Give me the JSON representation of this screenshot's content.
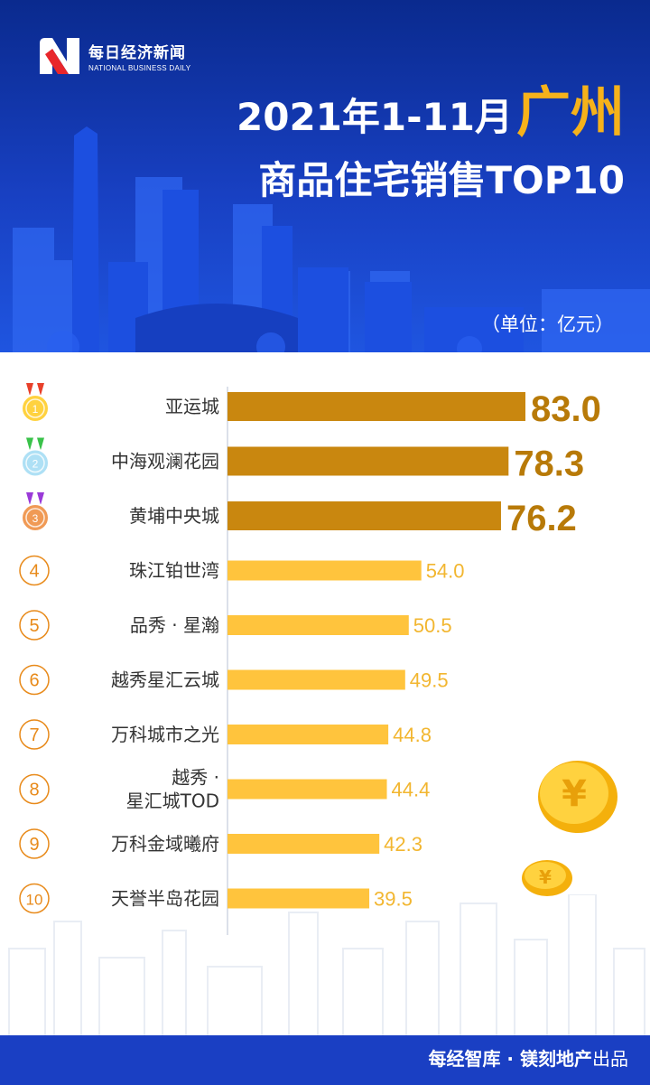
{
  "header": {
    "logo_cn": "每日经济新闻",
    "logo_en": "NATIONAL BUSINESS DAILY",
    "title_part1": "2021年1-11月",
    "title_city": "广州",
    "title_line2": "商品住宅销售TOP10",
    "unit": "（单位：亿元）"
  },
  "colors": {
    "top3_bar": "#c9870f",
    "other_bar": "#ffc43d",
    "top3_value": "#b87a08",
    "other_value": "#f2b630",
    "rank_circle": "#e88a1a",
    "header_blue": "#1840c2",
    "footer_blue": "#1a3fc3",
    "gold": "#ffd23f",
    "silver": "#aee0f5",
    "bronze": "#f09a55"
  },
  "chart_data": {
    "type": "bar",
    "orientation": "horizontal",
    "categories": [
      "亚运城",
      "中海观澜花园",
      "黄埔中央城",
      "珠江铂世湾",
      "品秀 · 星瀚",
      "越秀星汇云城",
      "万科城市之光",
      "越秀 · 星汇城TOD",
      "万科金域曦府",
      "天誉半岛花园"
    ],
    "category_lines": [
      [
        "亚运城"
      ],
      [
        "中海观澜花园"
      ],
      [
        "黄埔中央城"
      ],
      [
        "珠江铂世湾"
      ],
      [
        "品秀 · 星瀚"
      ],
      [
        "越秀星汇云城"
      ],
      [
        "万科城市之光"
      ],
      [
        "越秀 ·",
        "星汇城TOD"
      ],
      [
        "万科金域曦府"
      ],
      [
        "天誉半岛花园"
      ]
    ],
    "values": [
      83.0,
      78.3,
      76.2,
      54.0,
      50.5,
      49.5,
      44.8,
      44.4,
      42.3,
      39.5
    ],
    "value_labels": [
      "83.0",
      "78.3",
      "76.2",
      "54.0",
      "50.5",
      "49.5",
      "44.8",
      "44.4",
      "42.3",
      "39.5"
    ],
    "ranks": [
      "1",
      "2",
      "3",
      "4",
      "5",
      "6",
      "7",
      "8",
      "9",
      "10"
    ],
    "medals": [
      "gold",
      "silver",
      "bronze"
    ],
    "xlim": [
      0,
      83.0
    ],
    "unit": "亿元"
  },
  "footer": {
    "brand": "每经智库 · 镁刻地产",
    "suffix": "出品"
  }
}
